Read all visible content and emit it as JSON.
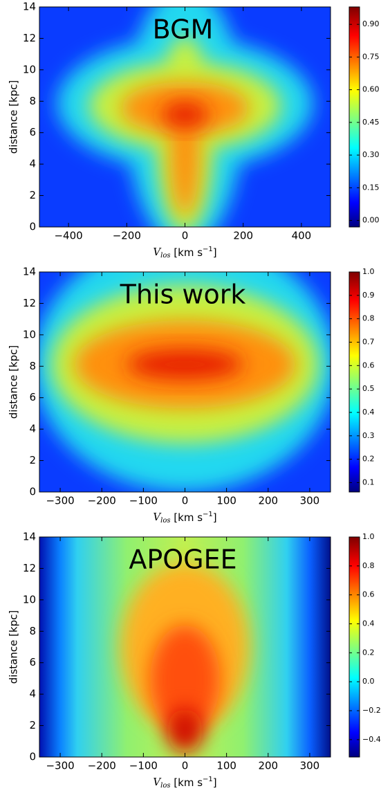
{
  "chart_data": [
    {
      "type": "heatmap",
      "title": "BGM",
      "xlabel": [
        "V",
        "los",
        " [km s",
        "−1",
        "]"
      ],
      "ylabel": "distance [kpc]",
      "xlim": [
        -500,
        500
      ],
      "xticks": [
        {
          "value": -400,
          "label": "−400"
        },
        {
          "value": -200,
          "label": "−200"
        },
        0,
        200,
        400
      ],
      "ylim": [
        0,
        14
      ],
      "yticks": [
        0,
        2,
        4,
        6,
        8,
        10,
        12,
        14
      ],
      "colormap": "jet",
      "clim": [
        -0.03,
        0.98
      ],
      "cticks": [
        {
          "value": 0,
          "label": "0.00"
        },
        0.15,
        {
          "value": 0.3,
          "label": "0.30"
        },
        0.45,
        {
          "value": 0.6,
          "label": "0.60"
        },
        0.75,
        {
          "value": 0.9,
          "label": "0.90"
        }
      ]
    },
    {
      "type": "heatmap",
      "title": "This work",
      "xlabel": [
        "V",
        "los",
        " [km s",
        "−1",
        "]"
      ],
      "ylabel": "distance [kpc]",
      "xlim": [
        -350,
        350
      ],
      "xticks": [
        {
          "value": -300,
          "label": "−300"
        },
        {
          "value": -200,
          "label": "−200"
        },
        {
          "value": -100,
          "label": "−100"
        },
        0,
        100,
        200,
        300
      ],
      "ylim": [
        0,
        14
      ],
      "yticks": [
        0,
        2,
        4,
        6,
        8,
        10,
        12,
        14
      ],
      "colormap": "jet",
      "clim": [
        0.06,
        1.0
      ],
      "cticks": [
        0.1,
        0.2,
        0.3,
        0.4,
        0.5,
        0.6,
        0.7,
        0.8,
        0.9,
        {
          "value": 1.0,
          "label": "1.0"
        }
      ]
    },
    {
      "type": "heatmap",
      "title": "APOGEE",
      "xlabel": [
        "V",
        "los",
        " [km s",
        "−1",
        "]"
      ],
      "ylabel": "distance [kpc]",
      "xlim": [
        -350,
        350
      ],
      "xticks": [
        {
          "value": -300,
          "label": "−300"
        },
        {
          "value": -200,
          "label": "−200"
        },
        {
          "value": -100,
          "label": "−100"
        },
        0,
        100,
        200,
        300
      ],
      "ylim": [
        0,
        14
      ],
      "yticks": [
        0,
        2,
        4,
        6,
        8,
        10,
        12,
        14
      ],
      "colormap": "jet",
      "clim": [
        -0.52,
        1.0
      ],
      "cticks": [
        {
          "value": -0.4,
          "label": "−0.4"
        },
        {
          "value": -0.2,
          "label": "−0.2"
        },
        {
          "value": 0,
          "label": "0.0"
        },
        0.2,
        0.4,
        0.6,
        0.8,
        {
          "value": 1.0,
          "label": "1.0"
        }
      ]
    }
  ]
}
